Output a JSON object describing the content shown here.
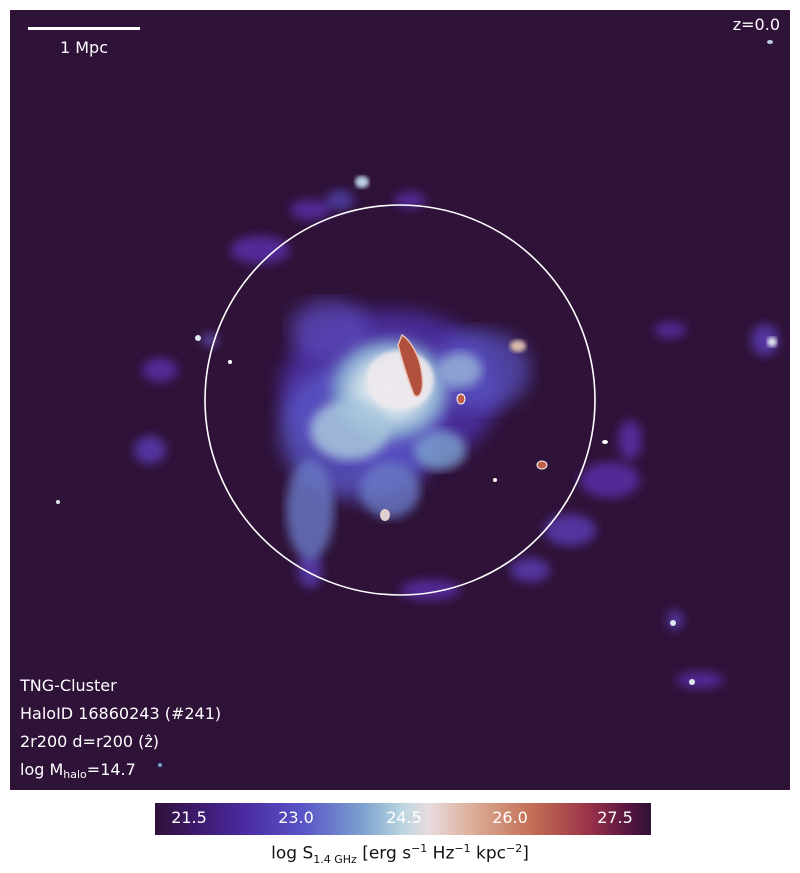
{
  "image": {
    "scale_bar_label": "1 Mpc",
    "redshift_label": "z=0.0",
    "annotations": {
      "simulation": "TNG-Cluster",
      "halo_id": "HaloID 16860243 (#241)",
      "projection": "2r200 d=r200 (ẑ)",
      "mass_prefix": "log M",
      "mass_sub": "halo",
      "mass_value": "=14.7"
    },
    "colorbar": {
      "ticks": [
        "21.5",
        "23.0",
        "24.5",
        "26.0",
        "27.5"
      ],
      "label_prefix": "log S",
      "label_sub": "1.4 GHz",
      "label_unit_1": " [erg s",
      "exp_1": "−1",
      "label_unit_2": " Hz",
      "exp_2": "−1",
      "label_unit_3": " kpc",
      "exp_3": "−2",
      "label_end": "]"
    },
    "colors": {
      "background": "#2e1238",
      "circle": "#ffffff"
    }
  }
}
